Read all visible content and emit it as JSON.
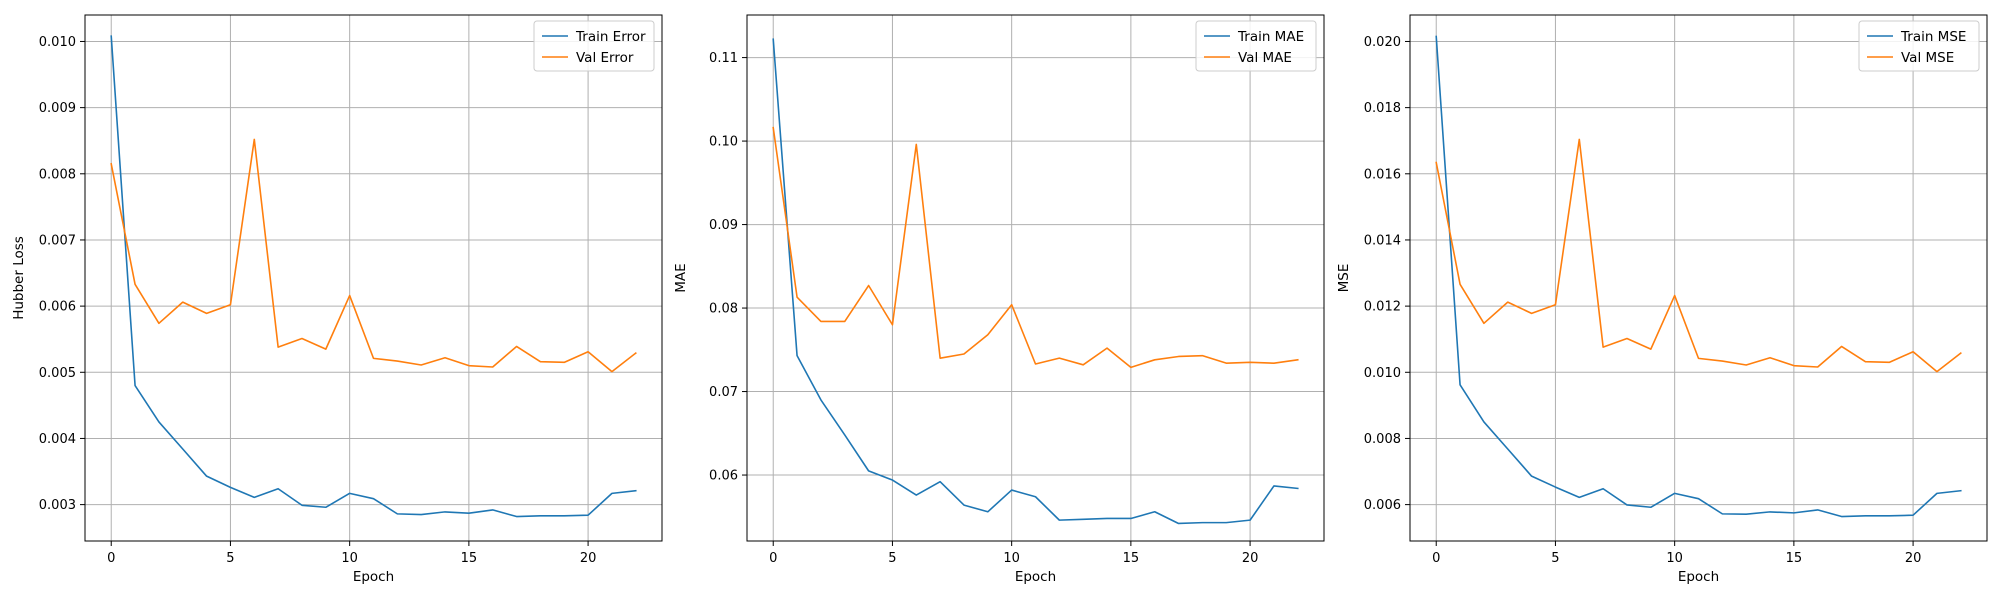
{
  "colors": {
    "train": "#1f77b4",
    "val": "#ff7f0e",
    "grid": "#b0b0b0"
  },
  "chart_data": [
    {
      "type": "line",
      "xlabel": "Epoch",
      "ylabel": "Hubber Loss",
      "xlim": [
        -1.1,
        23.1
      ],
      "ylim": [
        0.00245,
        0.0104
      ],
      "xticks": [
        0,
        5,
        10,
        15,
        20
      ],
      "xtick_labels": [
        "0",
        "5",
        "10",
        "15",
        "20"
      ],
      "yticks": [
        0.003,
        0.004,
        0.005,
        0.006,
        0.007,
        0.008,
        0.009,
        0.01
      ],
      "ytick_labels": [
        "0.003",
        "0.004",
        "0.005",
        "0.006",
        "0.007",
        "0.008",
        "0.009",
        "0.010"
      ],
      "grid": true,
      "legend_position": "top-right",
      "x": [
        0,
        1,
        2,
        3,
        4,
        5,
        6,
        7,
        8,
        9,
        10,
        11,
        12,
        13,
        14,
        15,
        16,
        17,
        18,
        19,
        20,
        21,
        22
      ],
      "series": [
        {
          "name": "Train Error",
          "color": "#1f77b4",
          "values": [
            0.01008,
            0.0048,
            0.00425,
            0.00384,
            0.00343,
            0.00326,
            0.00311,
            0.00324,
            0.00299,
            0.00296,
            0.00317,
            0.00309,
            0.00286,
            0.00285,
            0.00289,
            0.00287,
            0.00292,
            0.00282,
            0.00283,
            0.00283,
            0.00284,
            0.00317,
            0.00321
          ]
        },
        {
          "name": "Val Error",
          "color": "#ff7f0e",
          "values": [
            0.00815,
            0.00633,
            0.00574,
            0.00606,
            0.00589,
            0.00602,
            0.00852,
            0.00538,
            0.00551,
            0.00535,
            0.00616,
            0.00521,
            0.00517,
            0.00511,
            0.00522,
            0.0051,
            0.00508,
            0.00539,
            0.00516,
            0.00515,
            0.00531,
            0.00501,
            0.00529
          ]
        }
      ]
    },
    {
      "type": "line",
      "xlabel": "Epoch",
      "ylabel": "MAE",
      "xlim": [
        -1.1,
        23.1
      ],
      "ylim": [
        0.0521,
        0.1151
      ],
      "xticks": [
        0,
        5,
        10,
        15,
        20
      ],
      "xtick_labels": [
        "0",
        "5",
        "10",
        "15",
        "20"
      ],
      "yticks": [
        0.06,
        0.07,
        0.08,
        0.09,
        0.1,
        0.11
      ],
      "ytick_labels": [
        "0.06",
        "0.07",
        "0.08",
        "0.09",
        "0.10",
        "0.11"
      ],
      "grid": true,
      "legend_position": "top-right",
      "x": [
        0,
        1,
        2,
        3,
        4,
        5,
        6,
        7,
        8,
        9,
        10,
        11,
        12,
        13,
        14,
        15,
        16,
        17,
        18,
        19,
        20,
        21,
        22
      ],
      "series": [
        {
          "name": "Train MAE",
          "color": "#1f77b4",
          "values": [
            0.1122,
            0.0743,
            0.069,
            0.0648,
            0.0605,
            0.0594,
            0.0576,
            0.0592,
            0.0564,
            0.0556,
            0.0582,
            0.0574,
            0.0546,
            0.0547,
            0.0548,
            0.0548,
            0.0556,
            0.0542,
            0.0543,
            0.0543,
            0.0546,
            0.0587,
            0.0584
          ]
        },
        {
          "name": "Val MAE",
          "color": "#ff7f0e",
          "values": [
            0.1016,
            0.0813,
            0.0784,
            0.0784,
            0.0827,
            0.078,
            0.0996,
            0.074,
            0.0745,
            0.0768,
            0.0804,
            0.0733,
            0.074,
            0.0732,
            0.0752,
            0.0729,
            0.0738,
            0.0742,
            0.0743,
            0.0734,
            0.0735,
            0.0734,
            0.0738
          ]
        }
      ]
    },
    {
      "type": "line",
      "xlabel": "Epoch",
      "ylabel": "MSE",
      "xlim": [
        -1.1,
        23.1
      ],
      "ylim": [
        0.0049,
        0.0208
      ],
      "xticks": [
        0,
        5,
        10,
        15,
        20
      ],
      "xtick_labels": [
        "0",
        "5",
        "10",
        "15",
        "20"
      ],
      "yticks": [
        0.006,
        0.008,
        0.01,
        0.012,
        0.014,
        0.016,
        0.018,
        0.02
      ],
      "ytick_labels": [
        "0.006",
        "0.008",
        "0.010",
        "0.012",
        "0.014",
        "0.016",
        "0.018",
        "0.020"
      ],
      "grid": true,
      "legend_position": "top-right",
      "x": [
        0,
        1,
        2,
        3,
        4,
        5,
        6,
        7,
        8,
        9,
        10,
        11,
        12,
        13,
        14,
        15,
        16,
        17,
        18,
        19,
        20,
        21,
        22
      ],
      "series": [
        {
          "name": "Train MSE",
          "color": "#1f77b4",
          "values": [
            0.02015,
            0.00962,
            0.0085,
            0.00768,
            0.00686,
            0.00653,
            0.00622,
            0.00648,
            0.00599,
            0.00592,
            0.00634,
            0.00618,
            0.00572,
            0.00571,
            0.00578,
            0.00575,
            0.00584,
            0.00564,
            0.00566,
            0.00566,
            0.00568,
            0.00634,
            0.00642
          ]
        },
        {
          "name": "Val MSE",
          "color": "#ff7f0e",
          "values": [
            0.01634,
            0.01266,
            0.01148,
            0.01212,
            0.01178,
            0.01204,
            0.01704,
            0.01076,
            0.01102,
            0.0107,
            0.01232,
            0.01042,
            0.01034,
            0.01022,
            0.01044,
            0.0102,
            0.01016,
            0.01078,
            0.01032,
            0.0103,
            0.01062,
            0.01002,
            0.01058
          ]
        }
      ]
    }
  ]
}
